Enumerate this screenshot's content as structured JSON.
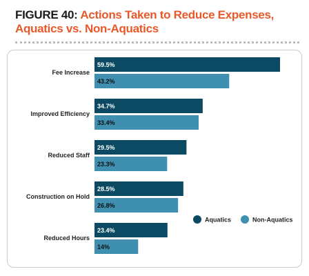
{
  "chart_data": {
    "type": "bar",
    "orientation": "horizontal",
    "title_prefix": "FIGURE 40:",
    "title": "Actions Taken to Reduce Expenses, Aquatics vs. Non-Aquatics",
    "categories": [
      "Fee Increase",
      "Improved Efficiency",
      "Reduced Staff",
      "Construction on Hold",
      "Reduced Hours"
    ],
    "series": [
      {
        "name": "Aquatics",
        "color": "#0b4a62",
        "values": [
          59.5,
          34.7,
          29.5,
          28.5,
          23.4
        ],
        "value_labels": [
          "59.5%",
          "34.7%",
          "29.5%",
          "28.5%",
          "23.4%"
        ]
      },
      {
        "name": "Non-Aquatics",
        "color": "#3e8fb0",
        "values": [
          43.2,
          33.4,
          23.3,
          26.8,
          14
        ],
        "value_labels": [
          "43.2%",
          "33.4%",
          "23.3%",
          "26.8%",
          "14%"
        ]
      }
    ],
    "legend": "lower-right"
  }
}
